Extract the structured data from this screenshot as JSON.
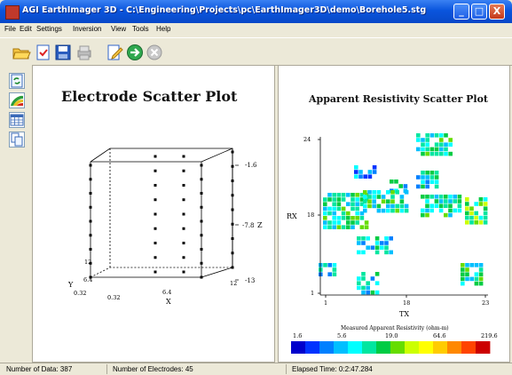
{
  "window": {
    "title": "AGI EarthImager 3D - C:\\Engineering\\Projects\\pc\\EarthImager3D\\demo\\Borehole5.stg",
    "minimize": "_",
    "maximize": "□",
    "close": "X"
  },
  "menu": [
    "File",
    "Edit",
    "Settings",
    "Inversion",
    "View",
    "Tools",
    "Help"
  ],
  "toolbar_icons": [
    "open-folder-icon",
    "check-document-icon",
    "save-disk-icon",
    "print-icon",
    "edit-document-icon",
    "run-icon",
    "stop-icon"
  ],
  "left_toolbar_icons": [
    "refresh-icon",
    "colormap-icon",
    "grid-icon",
    "copy-icon"
  ],
  "electrode_plot": {
    "title": "Electrode Scatter Plot",
    "x_label": "X",
    "y_label": "Y",
    "z_label": "Z",
    "x_ticks": [
      "0.32",
      "6.4",
      "12"
    ],
    "y_ticks": [
      "0.32",
      "6.4",
      "12"
    ],
    "z_ticks": [
      "-1.6",
      "-7.8",
      "-13"
    ]
  },
  "resistivity_plot": {
    "title": "Apparent Resistivity Scatter Plot",
    "x_label": "TX",
    "y_label": "RX",
    "x_ticks": [
      "1",
      "18",
      "23"
    ],
    "y_ticks": [
      "24",
      "18",
      "1"
    ],
    "colorbar_title": "Measured Apparent Resistivity (ohm-m)",
    "colorbar_ticks": [
      "1.6",
      "5.6",
      "19.0",
      "64.6",
      "219.6"
    ],
    "colors": [
      "#0000cc",
      "#0033ff",
      "#0080ff",
      "#00bfff",
      "#00ffff",
      "#00e6a0",
      "#00cc44",
      "#66dd00",
      "#ccff00",
      "#ffff00",
      "#ffcc00",
      "#ff8800",
      "#ff4400",
      "#cc0000"
    ]
  },
  "status": {
    "data": "Number of Data: 387",
    "electrodes": "Number of Electrodes: 45",
    "elapsed": "Elapsed Time: 0:2:47.284"
  }
}
